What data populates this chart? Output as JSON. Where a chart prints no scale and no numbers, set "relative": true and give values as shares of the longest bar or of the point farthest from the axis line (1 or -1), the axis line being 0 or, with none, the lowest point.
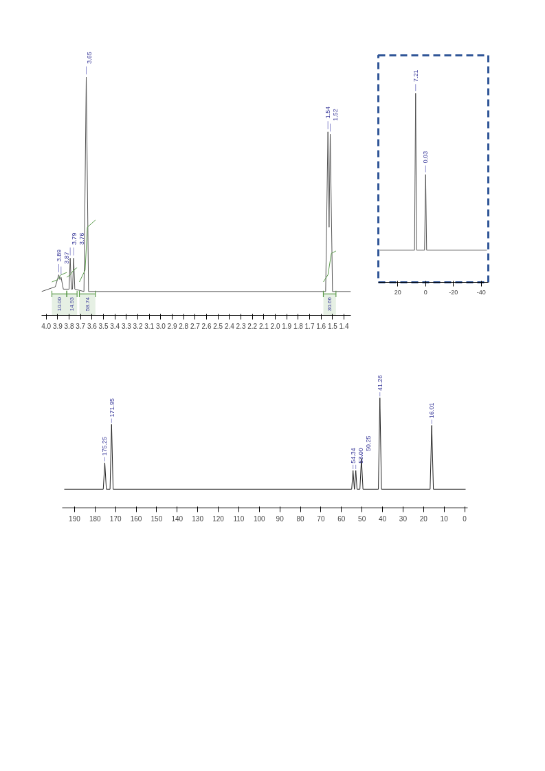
{
  "chart_data": [
    {
      "type": "line",
      "relative": true,
      "xlim": [
        4.04,
        1.34
      ],
      "xticks": [
        {
          "value": 4.0,
          "label": "4.0"
        },
        3.9,
        3.8,
        3.7,
        3.6,
        3.5,
        3.4,
        3.3,
        3.2,
        3.1,
        {
          "value": 3.0,
          "label": "3.0"
        },
        2.9,
        2.8,
        2.7,
        2.6,
        2.5,
        2.4,
        2.3,
        2.2,
        2.1,
        {
          "value": 2.0,
          "label": "2.0"
        },
        1.9,
        1.8,
        1.7,
        1.6,
        1.5,
        1.4
      ],
      "grid": false,
      "series": [
        {
          "color": "#555555",
          "x": [
            4.04,
            3.92,
            3.89,
            3.88,
            3.87,
            3.85,
            3.8,
            3.79,
            3.78,
            3.77,
            3.76,
            3.75,
            3.67,
            3.65,
            3.63,
            1.56,
            1.54,
            1.53,
            1.52,
            1.5,
            1.34
          ],
          "values": [
            0.1,
            0.12,
            0.17,
            0.15,
            0.16,
            0.11,
            0.11,
            0.24,
            0.11,
            0.11,
            0.24,
            0.11,
            0.1,
            1,
            0.1,
            0.1,
            0.77,
            0.37,
            0.76,
            0.1,
            0.1
          ]
        },
        {
          "color": "#5a9a4a",
          "x": [
            3.95,
            3.9,
            3.87,
            3.82,
            null,
            3.82,
            3.79,
            3.76,
            3.73,
            null,
            3.71,
            3.66,
            3.64,
            3.57,
            null,
            1.58,
            1.54,
            1.51,
            1.47
          ],
          "values": [
            0.14,
            0.15,
            0.17,
            0.18,
            null,
            0.16,
            0.17,
            0.19,
            0.2,
            null,
            0.14,
            0.19,
            0.37,
            0.4,
            null,
            0.14,
            0.17,
            0.26,
            0.27
          ]
        }
      ],
      "annotations": [
        {
          "text": "3.89",
          "x": 3.89,
          "y": 0.17
        },
        {
          "text": "3.87",
          "x": 3.87,
          "y": 0.16
        },
        {
          "text": "3.79",
          "x": 3.79,
          "y": 0.24
        },
        {
          "text": "3.76",
          "x": 3.76,
          "y": 0.24
        },
        {
          "text": "3.65",
          "x": 3.65,
          "y": 1
        },
        {
          "text": "1.54",
          "x": 1.54,
          "y": 0.77
        },
        {
          "text": "1.52",
          "x": 1.52,
          "y": 0.76
        }
      ],
      "bands": [
        {
          "axis": "x",
          "from": 3.95,
          "to": 3.82,
          "label": "10.00",
          "color": "#5a9a4a"
        },
        {
          "axis": "x",
          "from": 3.82,
          "to": 3.73,
          "label": "14.93",
          "color": "#5a9a4a"
        },
        {
          "axis": "x",
          "from": 3.71,
          "to": 3.57,
          "label": "58.74",
          "color": "#5a9a4a"
        },
        {
          "axis": "x",
          "from": 1.58,
          "to": 1.47,
          "label": "30.66",
          "color": "#5a9a4a"
        }
      ]
    },
    {
      "type": "line",
      "relative": true,
      "xlim": [
        34,
        -45
      ],
      "xticks": [
        20,
        0,
        -20,
        -40
      ],
      "grid": false,
      "series": [
        {
          "color": "#555555",
          "x": [
            33,
            8,
            7.21,
            6.5,
            0.8,
            0.03,
            -0.7,
            -44
          ],
          "values": [
            0.17,
            0.17,
            1,
            0.17,
            0.17,
            0.57,
            0.17,
            0.17
          ]
        }
      ],
      "annotations": [
        {
          "text": "7.21",
          "x": 7.21,
          "y": 1
        },
        {
          "text": "0.03",
          "x": 0.03,
          "y": 0.57
        }
      ]
    },
    {
      "type": "line",
      "relative": true,
      "xlim": [
        196,
        -1.5
      ],
      "xticks": [
        190,
        180,
        170,
        160,
        150,
        140,
        130,
        120,
        110,
        100,
        90,
        80,
        70,
        60,
        50,
        40,
        30,
        20,
        10,
        0
      ],
      "grid": false,
      "series": [
        {
          "color": "#222222",
          "x": [
            195,
            176,
            175.25,
            174.5,
            172.7,
            171.95,
            171.2,
            55,
            54.34,
            53.7,
            53.6,
            53.0,
            52.4,
            51,
            50.25,
            49.5,
            42,
            41.26,
            40.5,
            16.8,
            16.01,
            15.2,
            -0.5
          ],
          "values": [
            0.17,
            0.17,
            0.41,
            0.17,
            0.17,
            0.76,
            0.17,
            0.17,
            0.34,
            0.17,
            0.17,
            0.34,
            0.17,
            0.17,
            0.45,
            0.17,
            0.17,
            1,
            0.17,
            0.17,
            0.75,
            0.17,
            0.17
          ]
        }
      ],
      "annotations": [
        {
          "text": "175.25",
          "x": 175.25,
          "y": 0.41
        },
        {
          "text": "171.95",
          "x": 171.95,
          "y": 0.76
        },
        {
          "text": "54.34",
          "x": 54.34,
          "y": 0.34
        },
        {
          "text": "53.00",
          "x": 53.0,
          "y": 0.34
        },
        {
          "text": "50.25",
          "x": 50.25,
          "y": 0.45
        },
        {
          "text": "41.26",
          "x": 41.26,
          "y": 1
        },
        {
          "text": "16.01",
          "x": 16.01,
          "y": 0.75
        }
      ]
    }
  ]
}
